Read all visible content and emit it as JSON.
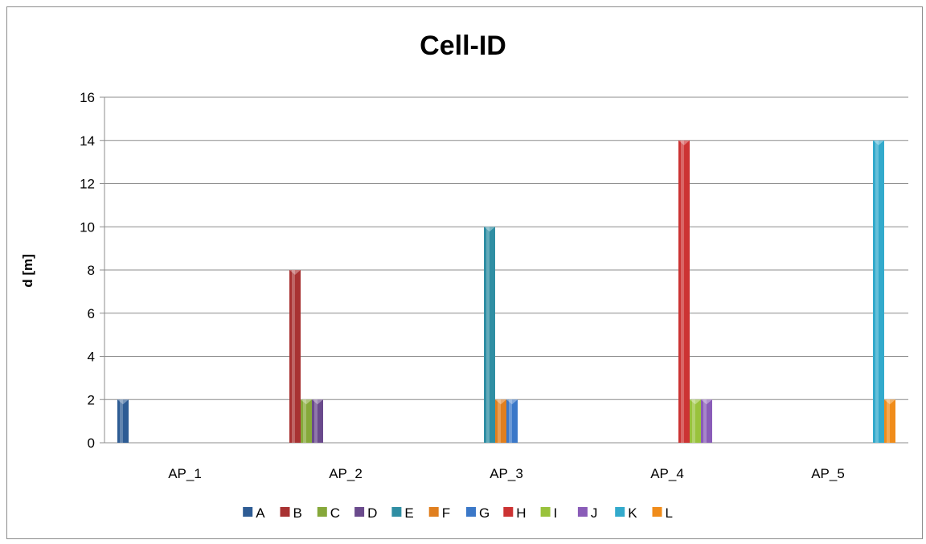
{
  "chart_data": {
    "type": "bar",
    "title": "Cell-ID",
    "ylabel": "d [m]",
    "xlabel": "",
    "categories": [
      "AP_1",
      "AP_2",
      "AP_3",
      "AP_4",
      "AP_5"
    ],
    "ylim": [
      0,
      16
    ],
    "yticks": [
      0,
      2,
      4,
      6,
      8,
      10,
      12,
      14,
      16
    ],
    "grid": true,
    "legend_position": "bottom",
    "series": [
      {
        "name": "A",
        "color": "#2e5c94",
        "values": [
          2,
          0,
          0,
          0,
          0
        ]
      },
      {
        "name": "B",
        "color": "#a83232",
        "values": [
          0,
          8,
          0,
          0,
          0
        ]
      },
      {
        "name": "C",
        "color": "#86a83a",
        "values": [
          0,
          2,
          0,
          0,
          0
        ]
      },
      {
        "name": "D",
        "color": "#6a4a8c",
        "values": [
          0,
          2,
          0,
          0,
          0
        ]
      },
      {
        "name": "E",
        "color": "#2f8ea3",
        "values": [
          0,
          0,
          10,
          0,
          0
        ]
      },
      {
        "name": "F",
        "color": "#e07f1f",
        "values": [
          0,
          0,
          2,
          0,
          0
        ]
      },
      {
        "name": "G",
        "color": "#3b78c8",
        "values": [
          0,
          0,
          2,
          0,
          0
        ]
      },
      {
        "name": "H",
        "color": "#cc3333",
        "values": [
          0,
          0,
          0,
          14,
          0
        ]
      },
      {
        "name": "I",
        "color": "#99c23c",
        "values": [
          0,
          0,
          0,
          2,
          0
        ]
      },
      {
        "name": "J",
        "color": "#8a5cb8",
        "values": [
          0,
          0,
          0,
          2,
          0
        ]
      },
      {
        "name": "K",
        "color": "#33aacc",
        "values": [
          0,
          0,
          0,
          0,
          14
        ]
      },
      {
        "name": "L",
        "color": "#f08c1a",
        "values": [
          0,
          0,
          0,
          0,
          2
        ]
      }
    ]
  }
}
